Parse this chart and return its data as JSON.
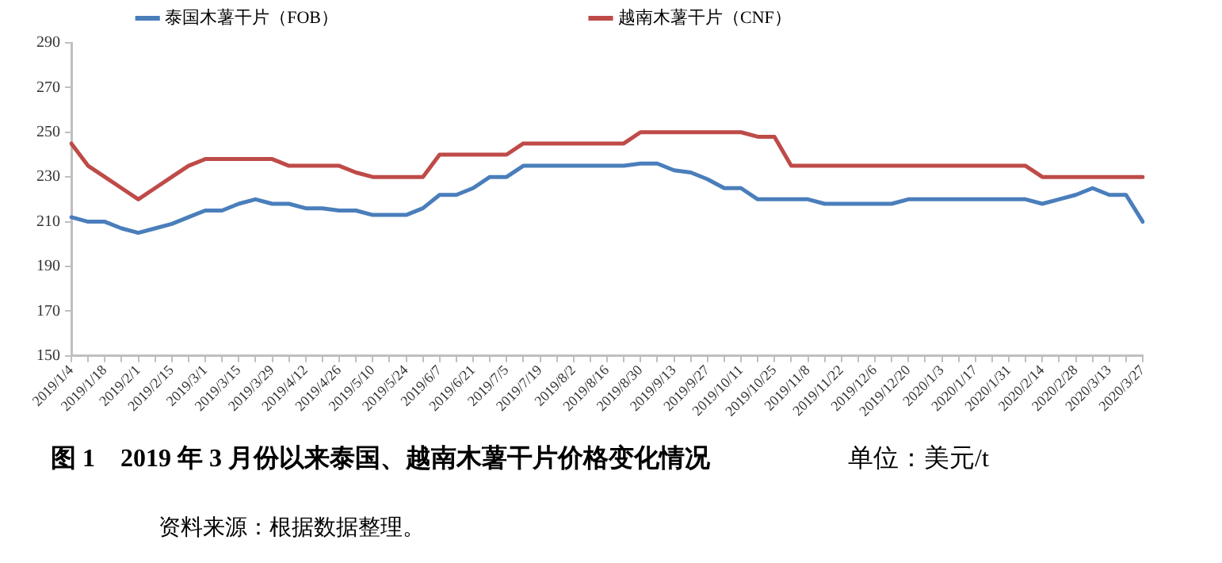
{
  "chart_data": {
    "type": "line",
    "title": "图 1　2019 年 3 月份以来泰国、越南木薯干片价格变化情况",
    "annotations": [
      "单位：美元/t",
      "资料来源：根据数据整理。"
    ],
    "categories": [
      "2019/1/4",
      null,
      "2019/1/18",
      null,
      "2019/2/1",
      null,
      "2019/2/15",
      null,
      "2019/3/1",
      null,
      "2019/3/15",
      null,
      "2019/3/29",
      null,
      "2019/4/12",
      null,
      "2019/4/26",
      null,
      "2019/5/10",
      null,
      "2019/5/24",
      null,
      "2019/6/7",
      null,
      "2019/6/21",
      null,
      "2019/7/5",
      null,
      "2019/7/19",
      null,
      "2019/8/2",
      null,
      "2019/8/16",
      null,
      "2019/8/30",
      null,
      "2019/9/13",
      null,
      "2019/9/27",
      null,
      "2019/10/11",
      null,
      "2019/10/25",
      null,
      "2019/11/8",
      null,
      "2019/11/22",
      null,
      "2019/12/6",
      null,
      "2019/12/20",
      null,
      "2020/1/3",
      null,
      "2020/1/17",
      null,
      "2020/1/31",
      null,
      "2020/2/14",
      null,
      "2020/2/28",
      null,
      "2020/3/13",
      null,
      "2020/3/27"
    ],
    "series": [
      {
        "name": "泰国木薯干片（FOB）",
        "color": "#4a7ebb",
        "values": [
          212,
          210,
          210,
          207,
          205,
          207,
          209,
          212,
          215,
          215,
          218,
          220,
          218,
          218,
          216,
          216,
          215,
          215,
          213,
          213,
          213,
          216,
          222,
          222,
          225,
          230,
          230,
          235,
          235,
          235,
          235,
          235,
          235,
          235,
          236,
          236,
          233,
          232,
          229,
          225,
          225,
          220,
          220,
          220,
          220,
          218,
          218,
          218,
          218,
          218,
          220,
          220,
          220,
          220,
          220,
          220,
          220,
          220,
          218,
          220,
          222,
          225,
          222,
          222,
          210
        ]
      },
      {
        "name": "越南木薯干片（CNF）",
        "color": "#be4b48",
        "values": [
          245,
          235,
          230,
          225,
          220,
          225,
          230,
          235,
          238,
          238,
          238,
          238,
          238,
          235,
          235,
          235,
          235,
          232,
          230,
          230,
          230,
          230,
          240,
          240,
          240,
          240,
          240,
          245,
          245,
          245,
          245,
          245,
          245,
          245,
          250,
          250,
          250,
          250,
          250,
          250,
          250,
          248,
          248,
          235,
          235,
          235,
          235,
          235,
          235,
          235,
          235,
          235,
          235,
          235,
          235,
          235,
          235,
          235,
          230,
          230,
          230,
          230,
          230,
          230,
          230
        ]
      }
    ],
    "ylim": [
      150,
      290
    ],
    "yticks": [
      150,
      170,
      190,
      210,
      230,
      250,
      270,
      290
    ],
    "grid": false,
    "legend": "top",
    "marker": "none",
    "line_style": "solid"
  }
}
